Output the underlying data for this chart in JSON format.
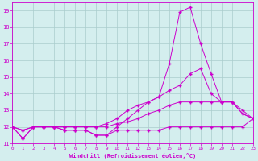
{
  "background_color": "#d4eeee",
  "grid_color": "#aacccc",
  "line_color": "#cc00cc",
  "xlim": [
    0,
    23
  ],
  "ylim": [
    11,
    19.5
  ],
  "yticks": [
    11,
    12,
    13,
    14,
    15,
    16,
    17,
    18,
    19
  ],
  "xticks": [
    0,
    1,
    2,
    3,
    4,
    5,
    6,
    7,
    8,
    9,
    10,
    11,
    12,
    13,
    14,
    15,
    16,
    17,
    18,
    19,
    20,
    21,
    22,
    23
  ],
  "xlabel": "Windchill (Refroidissement éolien,°C)",
  "series": [
    {
      "x": [
        0,
        1,
        2,
        3,
        4,
        5,
        6,
        7,
        8,
        9,
        10,
        11,
        12,
        13,
        14,
        15,
        16,
        17,
        18,
        19,
        20,
        21,
        22,
        23
      ],
      "y": [
        12.0,
        11.3,
        12.0,
        12.0,
        12.0,
        11.8,
        11.8,
        11.8,
        11.5,
        11.5,
        11.8,
        11.8,
        11.8,
        11.8,
        11.8,
        12.0,
        12.0,
        12.0,
        12.0,
        12.0,
        12.0,
        12.0,
        12.0,
        12.5
      ]
    },
    {
      "x": [
        0,
        1,
        2,
        3,
        4,
        5,
        6,
        7,
        8,
        9,
        10,
        11,
        12,
        13,
        14,
        15,
        16,
        17,
        18,
        19,
        20,
        21,
        22,
        23
      ],
      "y": [
        12.0,
        11.3,
        12.0,
        12.0,
        12.0,
        11.8,
        11.8,
        11.8,
        11.5,
        11.5,
        12.0,
        12.5,
        13.0,
        13.5,
        13.8,
        15.8,
        18.9,
        19.2,
        17.0,
        15.2,
        13.5,
        13.5,
        12.8,
        12.5
      ]
    },
    {
      "x": [
        0,
        1,
        2,
        3,
        4,
        5,
        6,
        7,
        8,
        9,
        10,
        11,
        12,
        13,
        14,
        15,
        16,
        17,
        18,
        19,
        20,
        21,
        22,
        23
      ],
      "y": [
        12.0,
        11.8,
        12.0,
        12.0,
        12.0,
        12.0,
        12.0,
        12.0,
        12.0,
        12.2,
        12.5,
        13.0,
        13.3,
        13.5,
        13.8,
        14.2,
        14.5,
        15.2,
        15.5,
        14.0,
        13.5,
        13.5,
        13.0,
        12.5
      ]
    },
    {
      "x": [
        0,
        1,
        2,
        3,
        4,
        5,
        6,
        7,
        8,
        9,
        10,
        11,
        12,
        13,
        14,
        15,
        16,
        17,
        18,
        19,
        20,
        21,
        22,
        23
      ],
      "y": [
        12.0,
        11.8,
        12.0,
        12.0,
        12.0,
        12.0,
        12.0,
        12.0,
        12.0,
        12.0,
        12.2,
        12.3,
        12.5,
        12.8,
        13.0,
        13.3,
        13.5,
        13.5,
        13.5,
        13.5,
        13.5,
        13.5,
        12.8,
        12.5
      ]
    }
  ]
}
